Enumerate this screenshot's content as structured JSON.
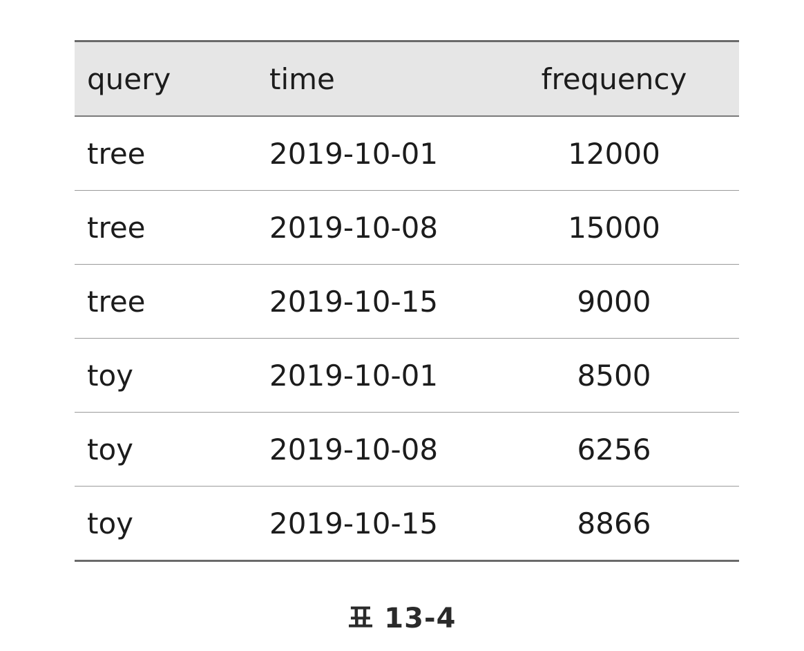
{
  "table": {
    "headers": [
      "query",
      "time",
      "frequency"
    ],
    "rows": [
      [
        "tree",
        "2019-10-01",
        "12000"
      ],
      [
        "tree",
        "2019-10-08",
        "15000"
      ],
      [
        "tree",
        "2019-10-15",
        "9000"
      ],
      [
        "toy",
        "2019-10-01",
        "8500"
      ],
      [
        "toy",
        "2019-10-08",
        "6256"
      ],
      [
        "toy",
        "2019-10-15",
        "8866"
      ]
    ]
  },
  "caption": "표 13-4",
  "colors": {
    "header_background": "#e6e6e6",
    "text": "#1c1c1c",
    "rule": "#6a6a6a"
  }
}
